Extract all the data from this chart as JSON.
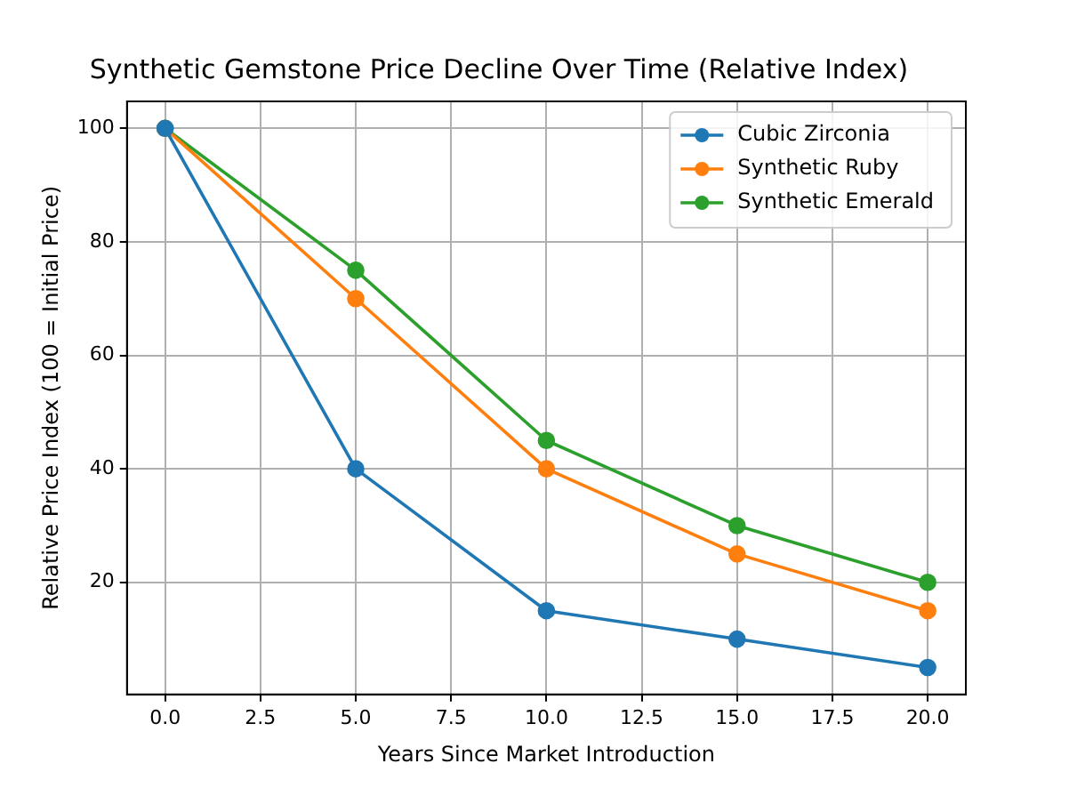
{
  "chart_data": {
    "type": "line",
    "title": "Synthetic Gemstone Price Decline Over Time (Relative Index)",
    "xlabel": "Years Since Market Introduction",
    "ylabel": "Relative Price Index (100 = Initial Price)",
    "x": [
      0,
      5,
      10,
      15,
      20
    ],
    "series": [
      {
        "name": "Cubic Zirconia",
        "color": "#1f77b4",
        "values": [
          100,
          40,
          15,
          10,
          5
        ]
      },
      {
        "name": "Synthetic Ruby",
        "color": "#ff7f0e",
        "values": [
          100,
          70,
          40,
          25,
          15
        ]
      },
      {
        "name": "Synthetic Emerald",
        "color": "#2ca02c",
        "values": [
          100,
          75,
          45,
          30,
          20
        ]
      }
    ],
    "xlim": [
      -1,
      21
    ],
    "ylim": [
      0.25,
      104.75
    ],
    "xticks": [
      {
        "value": 0,
        "label": "0.0"
      },
      {
        "value": 2.5,
        "label": "2.5"
      },
      {
        "value": 5,
        "label": "5.0"
      },
      {
        "value": 7.5,
        "label": "7.5"
      },
      {
        "value": 10,
        "label": "10.0"
      },
      {
        "value": 12.5,
        "label": "12.5"
      },
      {
        "value": 15,
        "label": "15.0"
      },
      {
        "value": 17.5,
        "label": "17.5"
      },
      {
        "value": 20,
        "label": "20.0"
      }
    ],
    "yticks": [
      20,
      40,
      60,
      80,
      100
    ],
    "grid": true,
    "legend": "top right",
    "marker": "circle",
    "line_style": "solid"
  }
}
